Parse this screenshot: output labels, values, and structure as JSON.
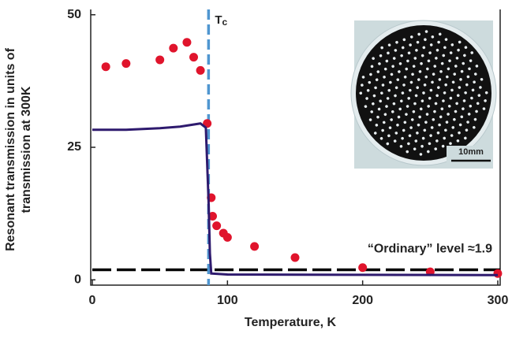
{
  "chart_data": {
    "type": "scatter-line",
    "x_label": "Temperature, K",
    "y_label": [
      "Resonant transmission in units of",
      "transmission at 300K"
    ],
    "xlim": [
      0,
      300
    ],
    "xticks": [
      0,
      100,
      200,
      300
    ],
    "ylim": [
      -1,
      51
    ],
    "yticks": [
      0,
      25,
      50
    ],
    "series": [
      {
        "kind": "scatter",
        "color": "#e0142c",
        "x": [
          10,
          25,
          50,
          60,
          70,
          75,
          80,
          85,
          88,
          89,
          92,
          97,
          100,
          120,
          150,
          200,
          250,
          300
        ],
        "values": [
          40.2,
          40.8,
          41.5,
          43.7,
          44.8,
          42,
          39.5,
          29.5,
          15.5,
          12,
          10.2,
          8.8,
          8,
          6.3,
          4.2,
          2.3,
          1.5,
          1.2
        ]
      },
      {
        "kind": "line",
        "color": "#2e1a6e",
        "x": [
          0,
          25,
          50,
          65,
          80,
          84,
          86,
          87,
          88,
          100,
          300
        ],
        "values": [
          28.3,
          28.3,
          28.6,
          28.9,
          29.5,
          28.7,
          15,
          5,
          1.2,
          1.0,
          0.9
        ]
      }
    ],
    "tc": {
      "x": 86,
      "color": "#4f96d0",
      "label_main": "T",
      "label_sub": "c"
    },
    "ordinary_level": {
      "value": 1.9,
      "label": "“Ordinary” level ≈1.9"
    },
    "inset_scale_label": "10mm"
  }
}
